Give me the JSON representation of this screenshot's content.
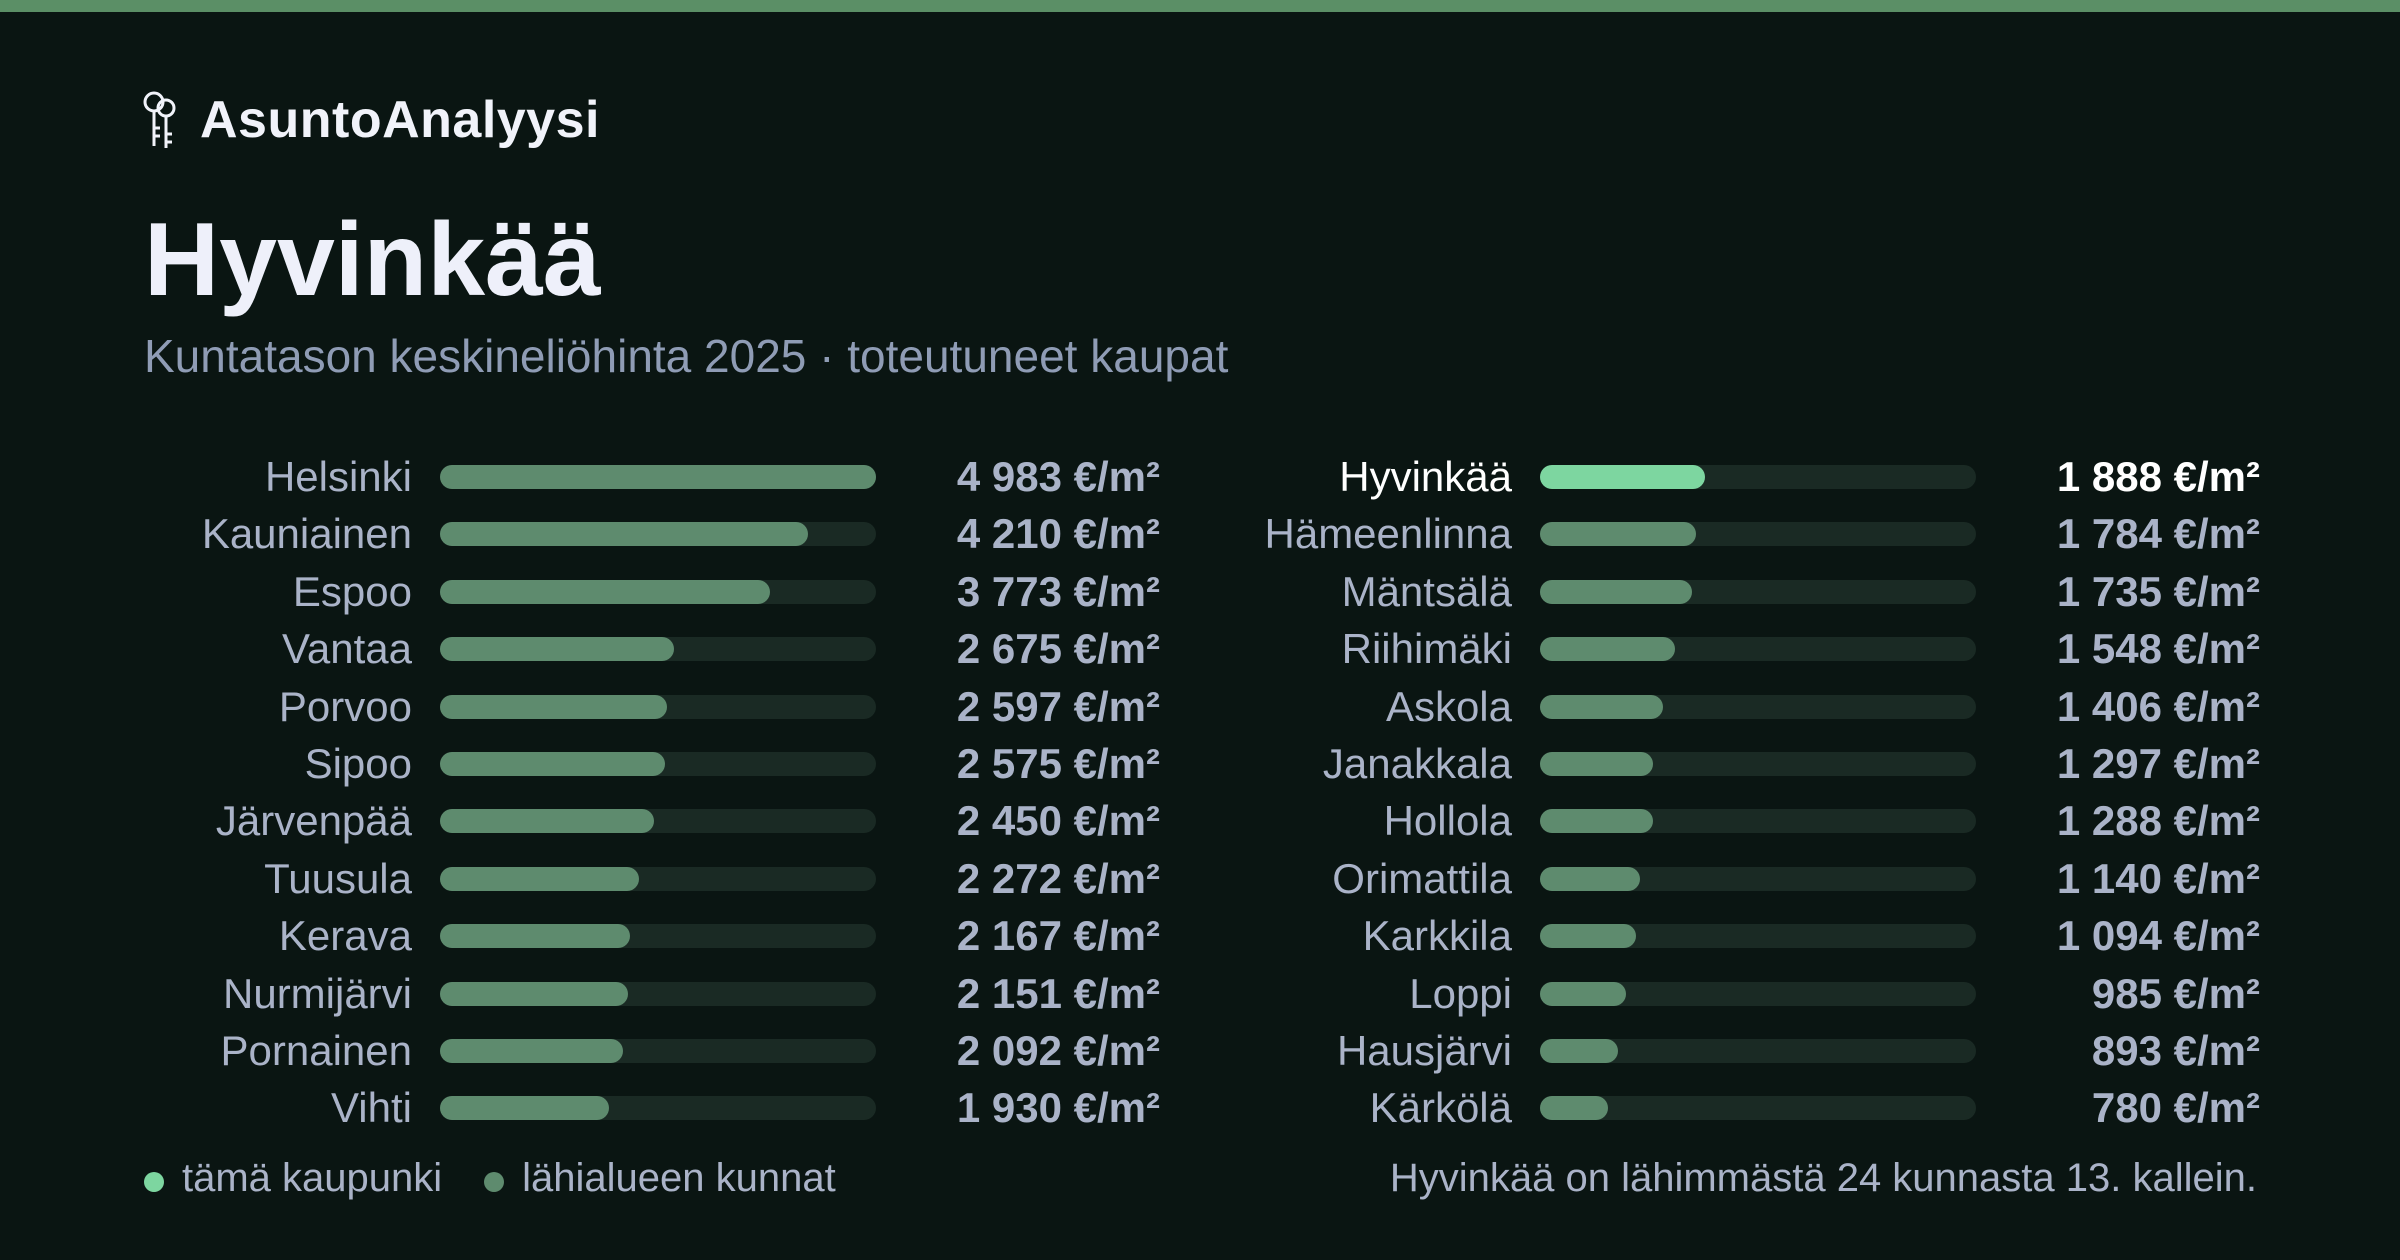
{
  "brand": {
    "name": "AsuntoAnalyysi",
    "icon": "keys-icon"
  },
  "title": "Hyvinkää",
  "subtitle": "Kuntatason keskineliöhinta 2025 · toteutuneet kaupat",
  "colors": {
    "background": "#0a1512",
    "accent_bar": "#5b8f66",
    "highlight": "#7dd6a0",
    "region": "#5e8b6e",
    "track": "#1a2a24",
    "text": "#aab3c8"
  },
  "chart_data": {
    "type": "bar",
    "orientation": "horizontal",
    "unit": "€/m²",
    "xlim": [
      0,
      4983
    ],
    "highlight": "Hyvinkää",
    "columns": [
      {
        "categories": [
          "Helsinki",
          "Kauniainen",
          "Espoo",
          "Vantaa",
          "Porvoo",
          "Sipoo",
          "Järvenpää",
          "Tuusula",
          "Kerava",
          "Nurmijärvi",
          "Pornainen",
          "Vihti"
        ],
        "values": [
          4983,
          4210,
          3773,
          2675,
          2597,
          2575,
          2450,
          2272,
          2167,
          2151,
          2092,
          1930
        ],
        "labels": [
          "4 983 €/m²",
          "4 210 €/m²",
          "3 773 €/m²",
          "2 675 €/m²",
          "2 597 €/m²",
          "2 575 €/m²",
          "2 450 €/m²",
          "2 272 €/m²",
          "2 167 €/m²",
          "2 151 €/m²",
          "2 092 €/m²",
          "1 930 €/m²"
        ]
      },
      {
        "categories": [
          "Hyvinkää",
          "Hämeenlinna",
          "Mäntsälä",
          "Riihimäki",
          "Askola",
          "Janakkala",
          "Hollola",
          "Orimattila",
          "Karkkila",
          "Loppi",
          "Hausjärvi",
          "Kärkölä"
        ],
        "values": [
          1888,
          1784,
          1735,
          1548,
          1406,
          1297,
          1288,
          1140,
          1094,
          985,
          893,
          780
        ],
        "labels": [
          "1 888 €/m²",
          "1 784 €/m²",
          "1 735 €/m²",
          "1 548 €/m²",
          "1 406 €/m²",
          "1 297 €/m²",
          "1 288 €/m²",
          "1 140 €/m²",
          "1 094 €/m²",
          "985 €/m²",
          "893 €/m²",
          "780 €/m²"
        ]
      }
    ]
  },
  "legend": {
    "city": "tämä kaupunki",
    "region": "lähialueen kunnat"
  },
  "footnote": "Hyvinkää on lähimmästä 24 kunnasta 13. kallein."
}
